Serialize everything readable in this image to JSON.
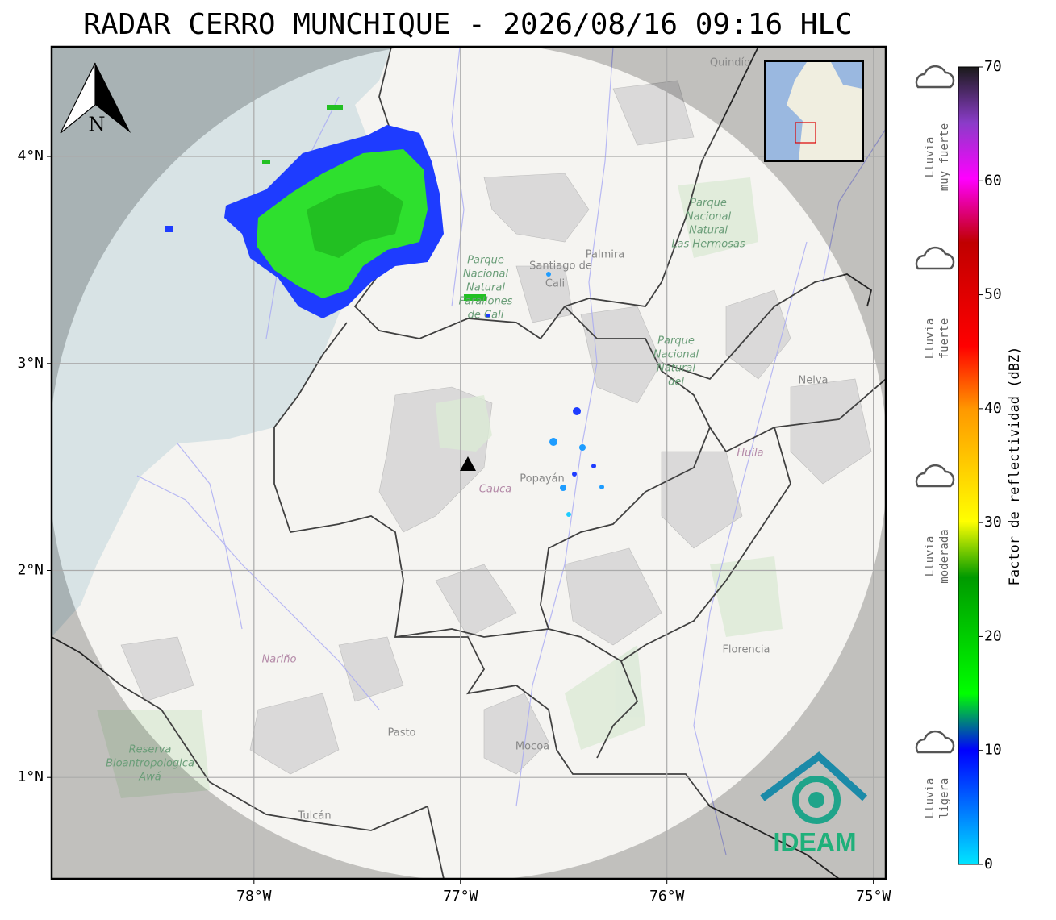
{
  "title": "RADAR CERRO MUNCHIQUE - 2026/08/16 09:16 HLC",
  "map": {
    "xlim": [
      -78.98,
      -74.94
    ],
    "ylim": [
      0.51,
      4.53
    ],
    "xticks": [
      {
        "value": -78,
        "label": "78°W"
      },
      {
        "value": -77,
        "label": "77°W"
      },
      {
        "value": -76,
        "label": "76°W"
      },
      {
        "value": -75,
        "label": "75°W"
      }
    ],
    "yticks": [
      {
        "value": 1,
        "label": "1°N"
      },
      {
        "value": 2,
        "label": "2°N"
      },
      {
        "value": 3,
        "label": "3°N"
      },
      {
        "value": 4,
        "label": "4°N"
      }
    ],
    "grid": true,
    "north_label": "N",
    "places": [
      "Quindío",
      "Palmira",
      "Santiago de",
      "Cali",
      "Neiva",
      "Popayán",
      "Pasto",
      "Mocoa",
      "Florencia",
      "Tulcán"
    ],
    "departments": [
      "Huila",
      "Cauca",
      "Nariño"
    ],
    "parks": [
      [
        "Parque",
        "Nacional",
        "Natural",
        "Las Hermosas"
      ],
      [
        "Parque",
        "Nacional",
        "Natural",
        "Farallones",
        "de Cali"
      ],
      [
        "Parque",
        "Nacional",
        "Natural",
        "del"
      ],
      [
        "Reserva",
        "Bioantropologica",
        "Awá"
      ]
    ],
    "logo": "IDEAM"
  },
  "colorbar": {
    "label": "Factor de reflectividad (dBZ)",
    "lim": [
      0,
      70
    ],
    "ticks": [
      0,
      10,
      20,
      30,
      40,
      50,
      60,
      70
    ]
  },
  "rain_categories": [
    [
      "Lluvia",
      "muy fuerte"
    ],
    [
      "Lluvia",
      "fuerte"
    ],
    [
      "Lluvia",
      "moderada"
    ],
    [
      "Lluvia",
      "ligera"
    ]
  ]
}
